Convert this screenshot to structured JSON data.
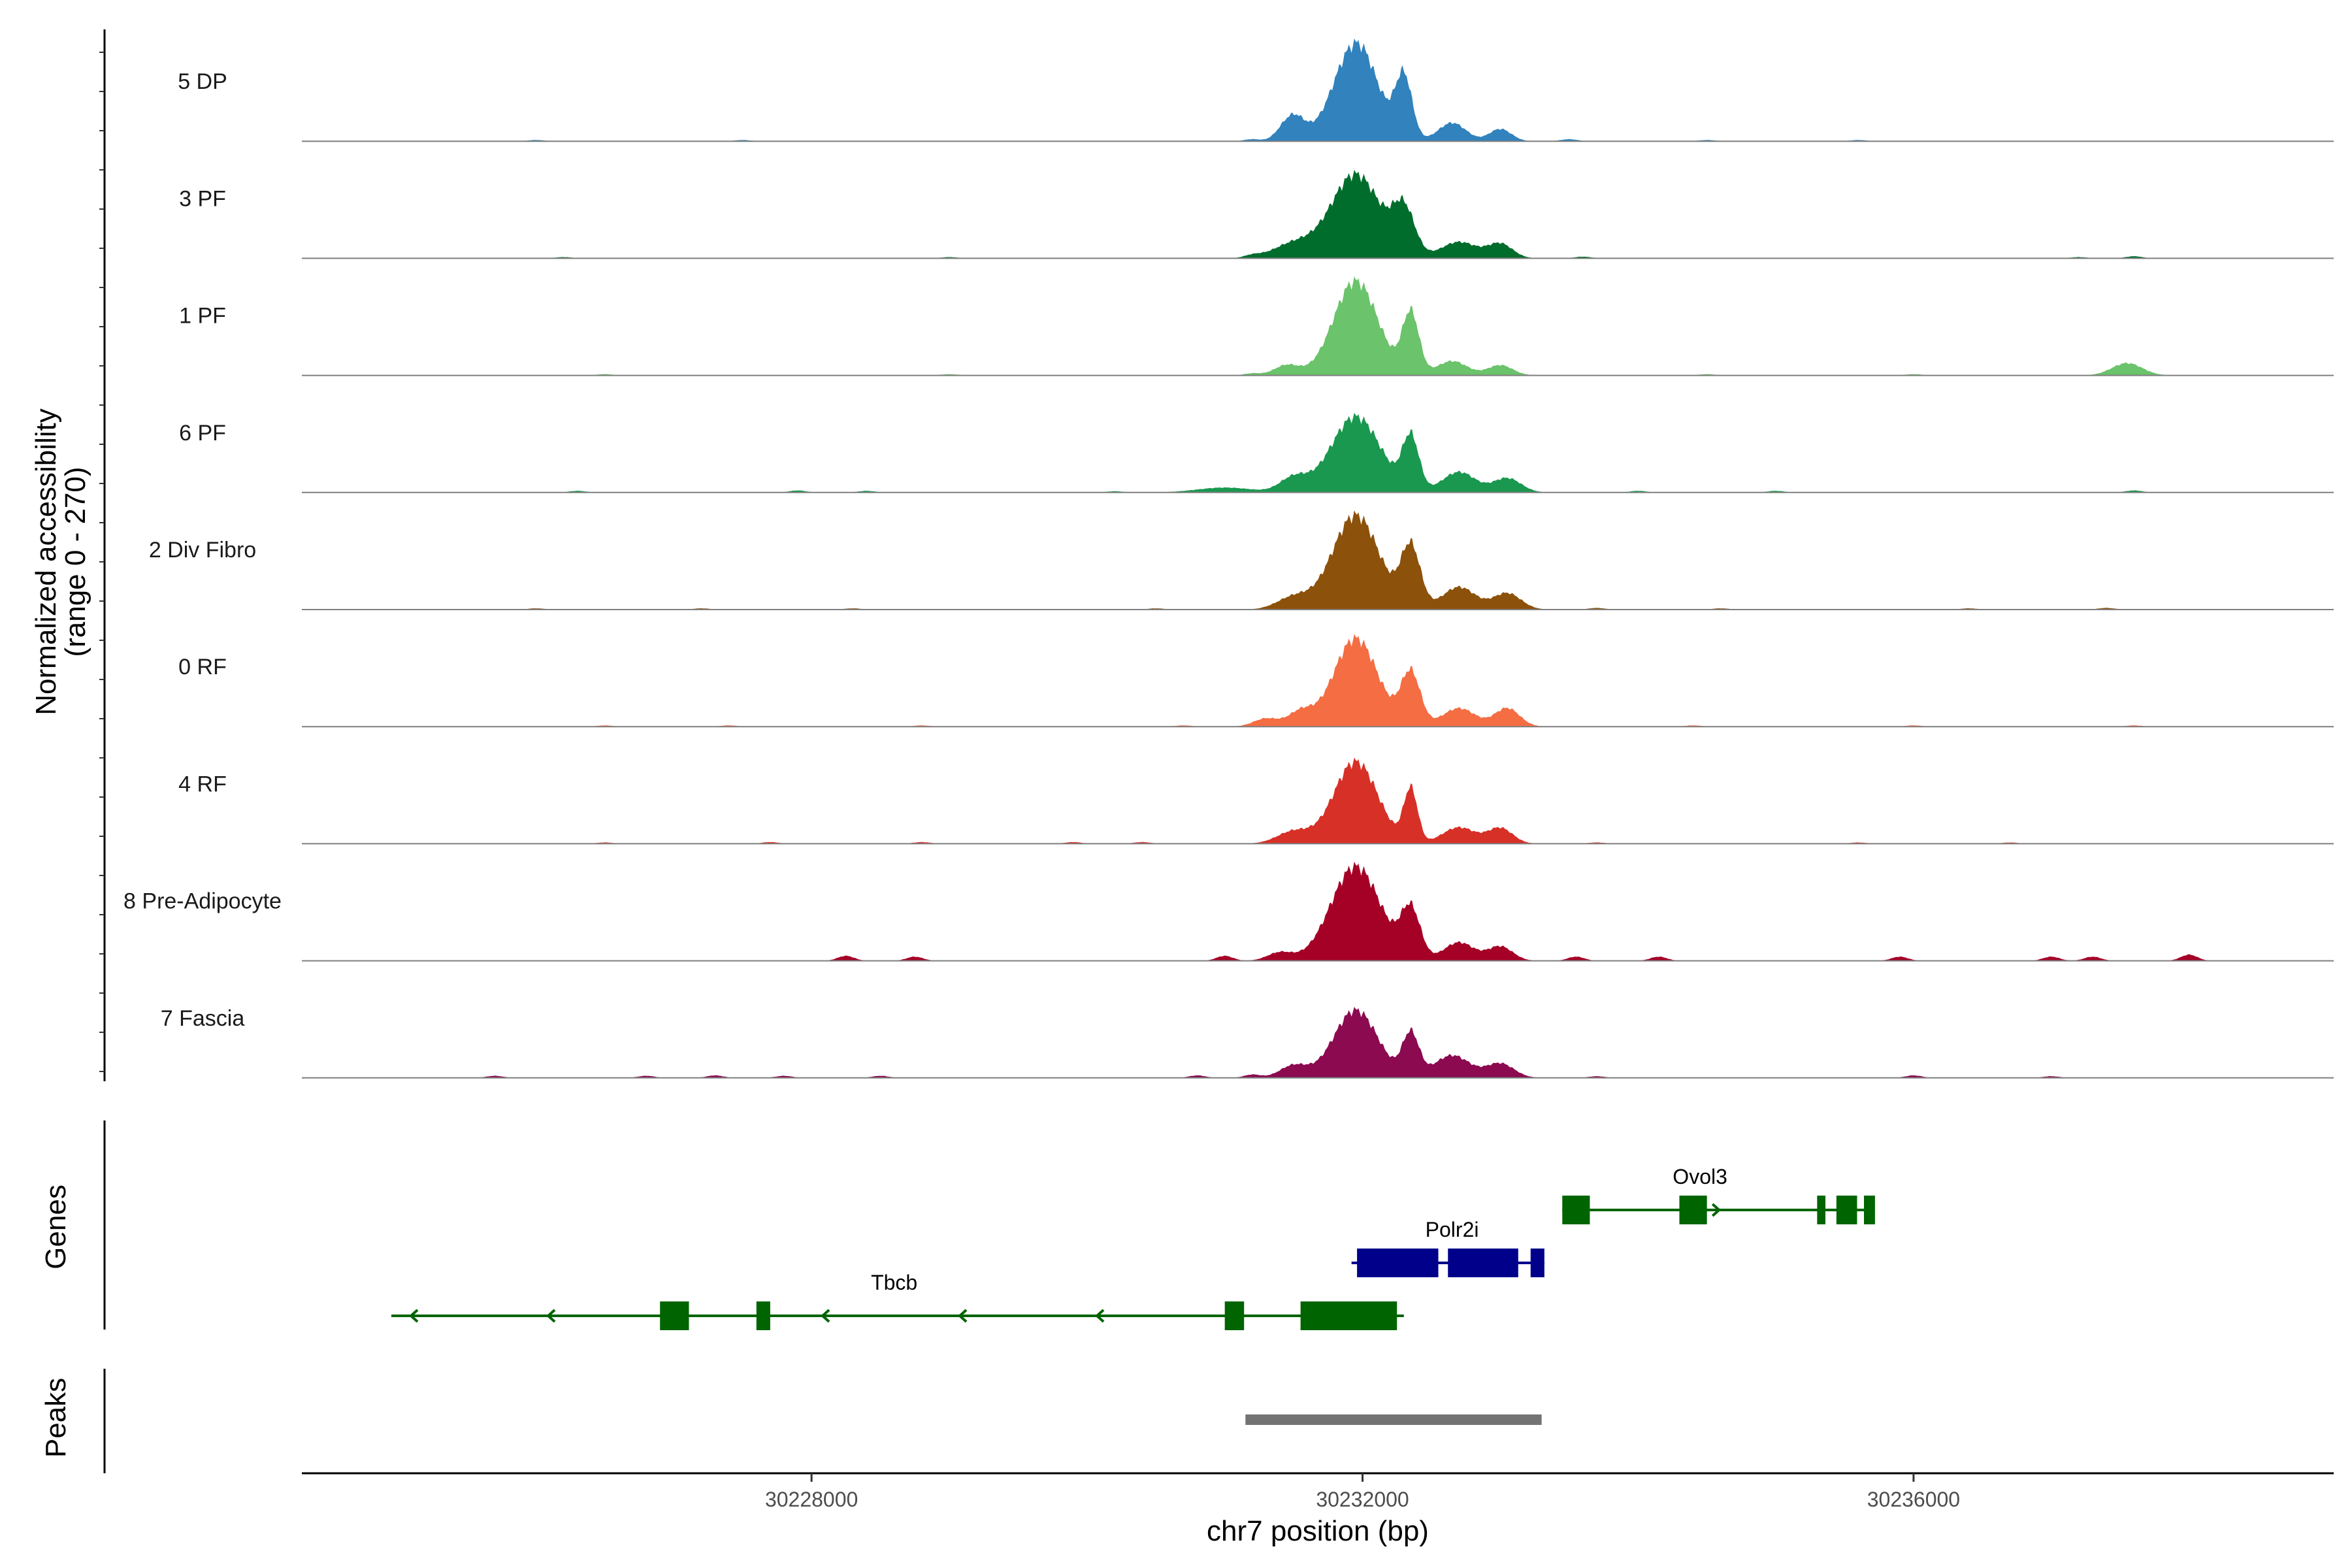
{
  "chart_data": {
    "type": "area",
    "title": "",
    "ylabel_line1": "Normalized accessibility",
    "ylabel_line2": "(range 0 - 270)",
    "ylim": [
      0,
      270
    ],
    "xlabel": "chr7 position (bp)",
    "xlim": [
      30224300,
      30239050
    ],
    "xticks": [
      30228000,
      30232000,
      30236000
    ],
    "xtick_labels": [
      "30228000",
      "30232000",
      "30236000"
    ],
    "baseline_color": "#7f7f7f",
    "series": [
      {
        "name": "5 DP",
        "color": "#3182bd",
        "noise": [
          [
            30231200,
            5
          ],
          [
            30231400,
            8
          ],
          [
            30232000,
            6
          ],
          [
            30233500,
            5
          ],
          [
            30227500,
            3
          ],
          [
            30234500,
            3
          ],
          [
            30235600,
            3
          ],
          [
            30226000,
            3
          ]
        ],
        "peaks": [
          [
            30231500,
            60,
            80
          ],
          [
            30231950,
            235,
            160
          ],
          [
            30232300,
            150,
            60
          ],
          [
            30232650,
            45,
            100
          ],
          [
            30233000,
            30,
            80
          ]
        ]
      },
      {
        "name": "3 PF",
        "color": "#006d2c",
        "noise": [
          [
            30231200,
            6
          ],
          [
            30233600,
            4
          ],
          [
            30226200,
            3
          ],
          [
            30229000,
            3
          ],
          [
            30237200,
            3
          ],
          [
            30237600,
            5
          ]
        ],
        "peaks": [
          [
            30231500,
            35,
            150
          ],
          [
            30231950,
            205,
            180
          ],
          [
            30232300,
            110,
            80
          ],
          [
            30232700,
            40,
            130
          ],
          [
            30233000,
            35,
            90
          ]
        ]
      },
      {
        "name": "1 PF",
        "color": "#6bc36b",
        "noise": [
          [
            30231200,
            5
          ],
          [
            30226500,
            3
          ],
          [
            30229000,
            3
          ],
          [
            30234500,
            3
          ],
          [
            30236000,
            3
          ]
        ],
        "peaks": [
          [
            30231450,
            25,
            90
          ],
          [
            30231950,
            230,
            160
          ],
          [
            30232350,
            150,
            60
          ],
          [
            30232650,
            35,
            110
          ],
          [
            30233000,
            25,
            90
          ],
          [
            30237550,
            30,
            110
          ]
        ]
      },
      {
        "name": "6 PF",
        "color": "#1a9850",
        "noise": [
          [
            30226300,
            4
          ],
          [
            30227900,
            5
          ],
          [
            30228400,
            4
          ],
          [
            30230200,
            3
          ],
          [
            30234000,
            4
          ],
          [
            30235000,
            4
          ],
          [
            30237600,
            5
          ]
        ],
        "peaks": [
          [
            30231000,
            12,
            200
          ],
          [
            30231500,
            35,
            100
          ],
          [
            30231950,
            185,
            180
          ],
          [
            30232350,
            130,
            60
          ],
          [
            30232700,
            50,
            120
          ],
          [
            30233050,
            35,
            100
          ]
        ]
      },
      {
        "name": "2 Div Fibro",
        "color": "#8c510a",
        "noise": [
          [
            30226000,
            3
          ],
          [
            30227200,
            3
          ],
          [
            30228300,
            3
          ],
          [
            30230500,
            3
          ],
          [
            30233700,
            4
          ],
          [
            30234600,
            3
          ],
          [
            30236400,
            3
          ],
          [
            30237400,
            4
          ]
        ],
        "peaks": [
          [
            30231500,
            30,
            120
          ],
          [
            30231950,
            230,
            170
          ],
          [
            30232350,
            150,
            70
          ],
          [
            30232700,
            55,
            120
          ],
          [
            30233050,
            40,
            100
          ]
        ]
      },
      {
        "name": "0 RF",
        "color": "#f46d43",
        "noise": [
          [
            30226500,
            3
          ],
          [
            30227400,
            3
          ],
          [
            30228800,
            3
          ],
          [
            30230700,
            3
          ],
          [
            30234400,
            3
          ],
          [
            30236000,
            3
          ],
          [
            30237600,
            3
          ]
        ],
        "peaks": [
          [
            30231300,
            20,
            90
          ],
          [
            30231550,
            35,
            90
          ],
          [
            30231950,
            215,
            160
          ],
          [
            30232350,
            130,
            70
          ],
          [
            30232700,
            45,
            120
          ],
          [
            30233050,
            45,
            90
          ]
        ]
      },
      {
        "name": "4 RF",
        "color": "#d73027",
        "noise": [
          [
            30226500,
            3
          ],
          [
            30227700,
            4
          ],
          [
            30228800,
            4
          ],
          [
            30229900,
            4
          ],
          [
            30230400,
            4
          ],
          [
            30233700,
            3
          ],
          [
            30235600,
            3
          ],
          [
            30236700,
            3
          ]
        ],
        "peaks": [
          [
            30231500,
            30,
            120
          ],
          [
            30231950,
            200,
            160
          ],
          [
            30232350,
            130,
            50
          ],
          [
            30232700,
            40,
            120
          ],
          [
            30233000,
            38,
            90
          ]
        ]
      },
      {
        "name": "8 Pre-Adipocyte",
        "color": "#a50026",
        "noise": [
          [
            30228250,
            12
          ],
          [
            30228750,
            10
          ],
          [
            30231000,
            12
          ],
          [
            30233550,
            10
          ],
          [
            30234150,
            10
          ],
          [
            30235900,
            10
          ],
          [
            30237000,
            10
          ],
          [
            30237300,
            10
          ],
          [
            30238000,
            15
          ]
        ],
        "peaks": [
          [
            30231400,
            20,
            90
          ],
          [
            30231950,
            230,
            180
          ],
          [
            30232350,
            120,
            70
          ],
          [
            30232700,
            45,
            110
          ],
          [
            30233000,
            35,
            90
          ]
        ]
      },
      {
        "name": "7 Fascia",
        "color": "#8b0a50",
        "noise": [
          [
            30225700,
            5
          ],
          [
            30226800,
            5
          ],
          [
            30227300,
            6
          ],
          [
            30227800,
            5
          ],
          [
            30228500,
            5
          ],
          [
            30230800,
            6
          ],
          [
            30231200,
            8
          ],
          [
            30233700,
            4
          ],
          [
            30236000,
            6
          ],
          [
            30237000,
            4
          ]
        ],
        "peaks": [
          [
            30231500,
            30,
            100
          ],
          [
            30231950,
            165,
            160
          ],
          [
            30232350,
            105,
            60
          ],
          [
            30232650,
            55,
            130
          ],
          [
            30233000,
            35,
            100
          ]
        ]
      }
    ],
    "genes_label": "Genes",
    "genes": [
      {
        "name": "Ovol3",
        "color": "#006400",
        "strand": "+",
        "start": 30233450,
        "end": 30235700,
        "exons": [
          [
            30233450,
            30233650
          ],
          [
            30234300,
            30234500
          ],
          [
            30235300,
            30235360
          ],
          [
            30235440,
            30235590
          ],
          [
            30235640,
            30235720
          ]
        ],
        "label_x": 30234450
      },
      {
        "name": "Polr2i",
        "color": "#00008b",
        "strand": "+",
        "start": 30231920,
        "end": 30233320,
        "exons": [
          [
            30231960,
            30232550
          ],
          [
            30232620,
            30233130
          ],
          [
            30233220,
            30233320
          ]
        ],
        "label_x": 30232650
      },
      {
        "name": "Tbcb",
        "color": "#006400",
        "strand": "-",
        "start": 30224950,
        "end": 30232300,
        "exons": [
          [
            30226900,
            30227110
          ],
          [
            30227600,
            30227700
          ],
          [
            30231000,
            30231140
          ],
          [
            30231550,
            30232250
          ]
        ],
        "label_x": 30228600
      }
    ],
    "peaks_label": "Peaks",
    "peak_regions": [
      {
        "start": 30231150,
        "end": 30233300,
        "color": "#737373"
      }
    ]
  }
}
